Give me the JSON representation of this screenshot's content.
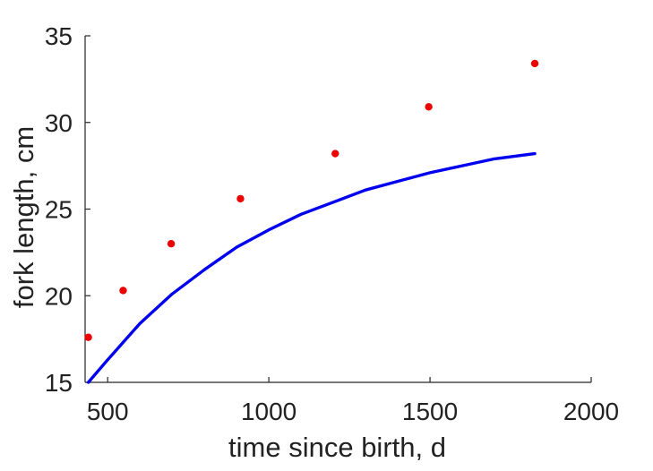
{
  "chart_data": {
    "type": "line",
    "title": "",
    "xlabel": "time since birth, d",
    "ylabel": "fork length, cm",
    "xlim": [
      430,
      2000
    ],
    "ylim": [
      15,
      35
    ],
    "xticks": [
      500,
      1000,
      1500,
      2000
    ],
    "yticks": [
      15,
      20,
      25,
      30,
      35
    ],
    "xtick_labels": [
      "500",
      "1000",
      "1500",
      "2000"
    ],
    "ytick_labels": [
      "15",
      "20",
      "25",
      "30",
      "35"
    ],
    "grid": false,
    "legend": "none",
    "series": [
      {
        "kind": "line",
        "color": "#0000ee",
        "x": [
          440,
          500,
          600,
          700,
          800,
          900,
          1000,
          1100,
          1200,
          1300,
          1400,
          1500,
          1600,
          1700,
          1825
        ],
        "y": [
          15.0,
          16.3,
          18.4,
          20.1,
          21.5,
          22.8,
          23.8,
          24.7,
          25.4,
          26.1,
          26.6,
          27.1,
          27.5,
          27.9,
          28.2
        ]
      },
      {
        "kind": "scatter",
        "color": "#ee0000",
        "x": [
          440,
          548,
          697,
          912,
          1206,
          1496,
          1825
        ],
        "y": [
          17.6,
          20.3,
          23.0,
          25.6,
          28.2,
          30.9,
          33.4
        ]
      }
    ]
  }
}
